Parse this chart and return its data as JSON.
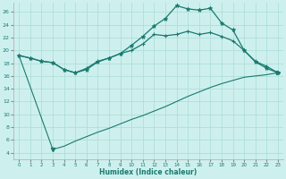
{
  "xlabel": "Humidex (Indice chaleur)",
  "bg_color": "#cdf0ee",
  "grid_color": "#b0ddd8",
  "line_color": "#1a7a70",
  "xlim": [
    -0.5,
    23.5
  ],
  "ylim": [
    3,
    27.5
  ],
  "yticks": [
    4,
    6,
    8,
    10,
    12,
    14,
    16,
    18,
    20,
    22,
    24,
    26
  ],
  "xticks": [
    0,
    1,
    2,
    3,
    4,
    5,
    6,
    7,
    8,
    9,
    10,
    11,
    12,
    13,
    14,
    15,
    16,
    17,
    18,
    19,
    20,
    21,
    22,
    23
  ],
  "line_upper_x": [
    0,
    1,
    2,
    3,
    4,
    5,
    6,
    7,
    8,
    9,
    10,
    11,
    12,
    13,
    14,
    15,
    16,
    17,
    18,
    19,
    20,
    21,
    22,
    23
  ],
  "line_upper_y": [
    19.2,
    18.8,
    18.3,
    18.1,
    17.0,
    16.5,
    17.0,
    18.2,
    18.8,
    19.5,
    20.8,
    22.2,
    23.8,
    25.0,
    27.0,
    26.5,
    26.3,
    26.6,
    24.3,
    23.2,
    20.0,
    18.2,
    17.2,
    16.5
  ],
  "line_mid_x": [
    0,
    1,
    2,
    3,
    4,
    5,
    6,
    7,
    8,
    9,
    10,
    11,
    12,
    13,
    14,
    15,
    16,
    17,
    18,
    19,
    20,
    21,
    22,
    23
  ],
  "line_mid_y": [
    19.2,
    18.8,
    18.3,
    18.1,
    17.0,
    16.5,
    17.2,
    18.3,
    18.8,
    19.5,
    20.0,
    21.0,
    22.5,
    22.3,
    22.5,
    23.0,
    22.5,
    22.8,
    22.2,
    21.5,
    20.0,
    18.3,
    17.5,
    16.5
  ],
  "line_lower_x": [
    0,
    3,
    4,
    5,
    6,
    7,
    8,
    9,
    10,
    11,
    12,
    13,
    14,
    15,
    16,
    17,
    18,
    19,
    20,
    21,
    22,
    23
  ],
  "line_lower_y": [
    19.2,
    4.5,
    5.0,
    5.8,
    6.5,
    7.2,
    7.8,
    8.5,
    9.2,
    9.8,
    10.5,
    11.2,
    12.0,
    12.8,
    13.5,
    14.2,
    14.8,
    15.3,
    15.8,
    16.0,
    16.2,
    16.5
  ]
}
